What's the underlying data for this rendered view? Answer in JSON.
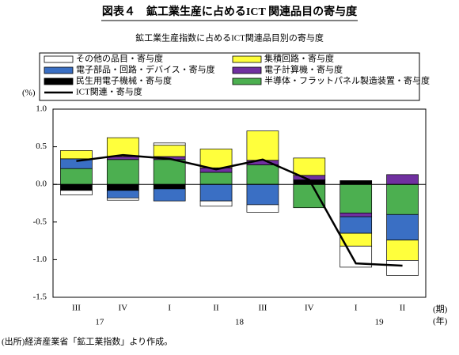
{
  "chart_data": {
    "type": "stacked-bar",
    "title": "図表４　鉱工業生産に占めるICT 関連品目の寄与度",
    "subtitle": "鉱工業生産指数に占めるICT関連品目別の寄与度",
    "y_unit": "(%)",
    "x_unit": "(期)",
    "year_unit": "(年)",
    "source": "(出所)経済産業省「鉱工業指数」より作成。",
    "categories": [
      "III",
      "IV",
      "I",
      "II",
      "III",
      "IV",
      "I",
      "II"
    ],
    "year_labels": [
      "17",
      null,
      "18",
      null,
      null,
      null,
      "19",
      null
    ],
    "series": [
      {
        "name": "民生用電子機械・寄与度",
        "color": "#000000",
        "values": [
          -0.08,
          -0.08,
          -0.06,
          0,
          0,
          0.06,
          0.05,
          0
        ]
      },
      {
        "name": "半導体・フラットパネル製造装置・寄与度",
        "color": "#4caf50",
        "values": [
          0.21,
          0.33,
          0.33,
          0.16,
          0.26,
          -0.31,
          -0.38,
          -0.4
        ]
      },
      {
        "name": "電子計算機・寄与度",
        "color": "#7030a0",
        "values": [
          0,
          0.04,
          0.04,
          0.06,
          0.06,
          0.06,
          -0.05,
          0.13
        ]
      },
      {
        "name": "電子部品・回路・デバイス・寄与度",
        "color": "#3a6fc4",
        "values": [
          0.13,
          -0.1,
          -0.16,
          -0.22,
          -0.27,
          0,
          -0.22,
          -0.34
        ]
      },
      {
        "name": "集積回路・寄与度",
        "color": "#ffff3c",
        "values": [
          0.11,
          0.25,
          0.15,
          0.25,
          0.39,
          0.23,
          -0.17,
          -0.27
        ]
      },
      {
        "name": "その他の品目・寄与度",
        "color": "#ffffff",
        "values": [
          -0.06,
          -0.03,
          0.03,
          -0.07,
          -0.1,
          0,
          -0.28,
          -0.2
        ]
      }
    ],
    "line": {
      "name": "ICT関連・寄与度",
      "color": "#000000",
      "values": [
        0.31,
        0.39,
        0.34,
        0.2,
        0.33,
        0.06,
        -1.05,
        -1.08
      ]
    },
    "ylim": [
      -1.5,
      1.0
    ],
    "yticks": [
      {
        "value": 1.0,
        "label": "1.0"
      },
      {
        "value": 0.5,
        "label": "0.5"
      },
      {
        "value": 0,
        "label": "0.0"
      },
      {
        "value": -0.5,
        "label": "-0.5"
      },
      {
        "value": -1.0,
        "label": "-1.0"
      },
      {
        "value": -1.5,
        "label": "-1.5"
      }
    ]
  }
}
